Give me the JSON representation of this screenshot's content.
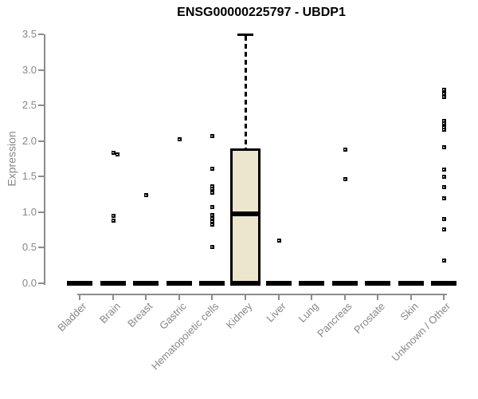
{
  "title": "ENSG00000225797 - UBDP1",
  "y_axis": {
    "label": "Expression",
    "ticks": [
      "0.0",
      "0.5",
      "1.0",
      "1.5",
      "2.0",
      "2.5",
      "3.0",
      "3.5"
    ]
  },
  "chart_data": {
    "type": "boxplot",
    "title": "ENSG00000225797 - UBDP1",
    "xlabel": "",
    "ylabel": "Expression",
    "ylim": [
      0,
      3.5
    ],
    "ytick_values": [
      0,
      0.5,
      1,
      1.5,
      2,
      2.5,
      3,
      3.5
    ],
    "grid": false,
    "legend": "none",
    "box_fill_color": "#ECE6CC",
    "axis_color": "#8C8C8C",
    "data_color": "#000000",
    "categories": [
      "Bladder",
      "Brain",
      "Breast",
      "Gastric",
      "Hematopoietic cells",
      "Kidney",
      "Liver",
      "Lung",
      "Pancreas",
      "Prostate",
      "Skin",
      "Unknown / Other"
    ],
    "boxes": [
      {
        "category": "Bladder",
        "q1": 0,
        "median": 0,
        "q3": 0,
        "whisker_low": 0,
        "whisker_high": 0,
        "outliers": []
      },
      {
        "category": "Brain",
        "q1": 0,
        "median": 0,
        "q3": 0,
        "whisker_low": 0,
        "whisker_high": 0,
        "outliers": [
          1.84,
          1.82,
          0.95,
          0.89
        ]
      },
      {
        "category": "Breast",
        "q1": 0,
        "median": 0,
        "q3": 0,
        "whisker_low": 0,
        "whisker_high": 0,
        "outliers": [
          1.25
        ]
      },
      {
        "category": "Gastric",
        "q1": 0,
        "median": 0,
        "q3": 0,
        "whisker_low": 0,
        "whisker_high": 0,
        "outliers": [
          2.03
        ]
      },
      {
        "category": "Hematopoietic cells",
        "q1": 0,
        "median": 0,
        "q3": 0,
        "whisker_low": 0,
        "whisker_high": 0,
        "outliers": [
          2.07,
          1.62,
          1.37,
          1.33,
          1.28,
          1.08,
          0.96,
          0.92,
          0.87,
          0.83,
          0.52
        ]
      },
      {
        "category": "Kidney",
        "q1": 0,
        "median": 0.98,
        "q3": 1.9,
        "whisker_low": 0,
        "whisker_high": 3.5,
        "outliers": []
      },
      {
        "category": "Liver",
        "q1": 0,
        "median": 0,
        "q3": 0,
        "whisker_low": 0,
        "whisker_high": 0,
        "outliers": [
          0.61
        ]
      },
      {
        "category": "Lung",
        "q1": 0,
        "median": 0,
        "q3": 0,
        "whisker_low": 0,
        "whisker_high": 0,
        "outliers": []
      },
      {
        "category": "Pancreas",
        "q1": 0,
        "median": 0,
        "q3": 0,
        "whisker_low": 0,
        "whisker_high": 0,
        "outliers": [
          1.88,
          1.47
        ]
      },
      {
        "category": "Prostate",
        "q1": 0,
        "median": 0,
        "q3": 0,
        "whisker_low": 0,
        "whisker_high": 0,
        "outliers": []
      },
      {
        "category": "Skin",
        "q1": 0,
        "median": 0,
        "q3": 0,
        "whisker_low": 0,
        "whisker_high": 0,
        "outliers": []
      },
      {
        "category": "Unknown / Other",
        "q1": 0,
        "median": 0,
        "q3": 0,
        "whisker_low": 0,
        "whisker_high": 0,
        "outliers": [
          2.73,
          2.67,
          2.62,
          2.29,
          2.25,
          2.2,
          2.16,
          1.92,
          1.6,
          1.5,
          1.36,
          1.2,
          0.91,
          0.76,
          0.32
        ]
      }
    ]
  }
}
